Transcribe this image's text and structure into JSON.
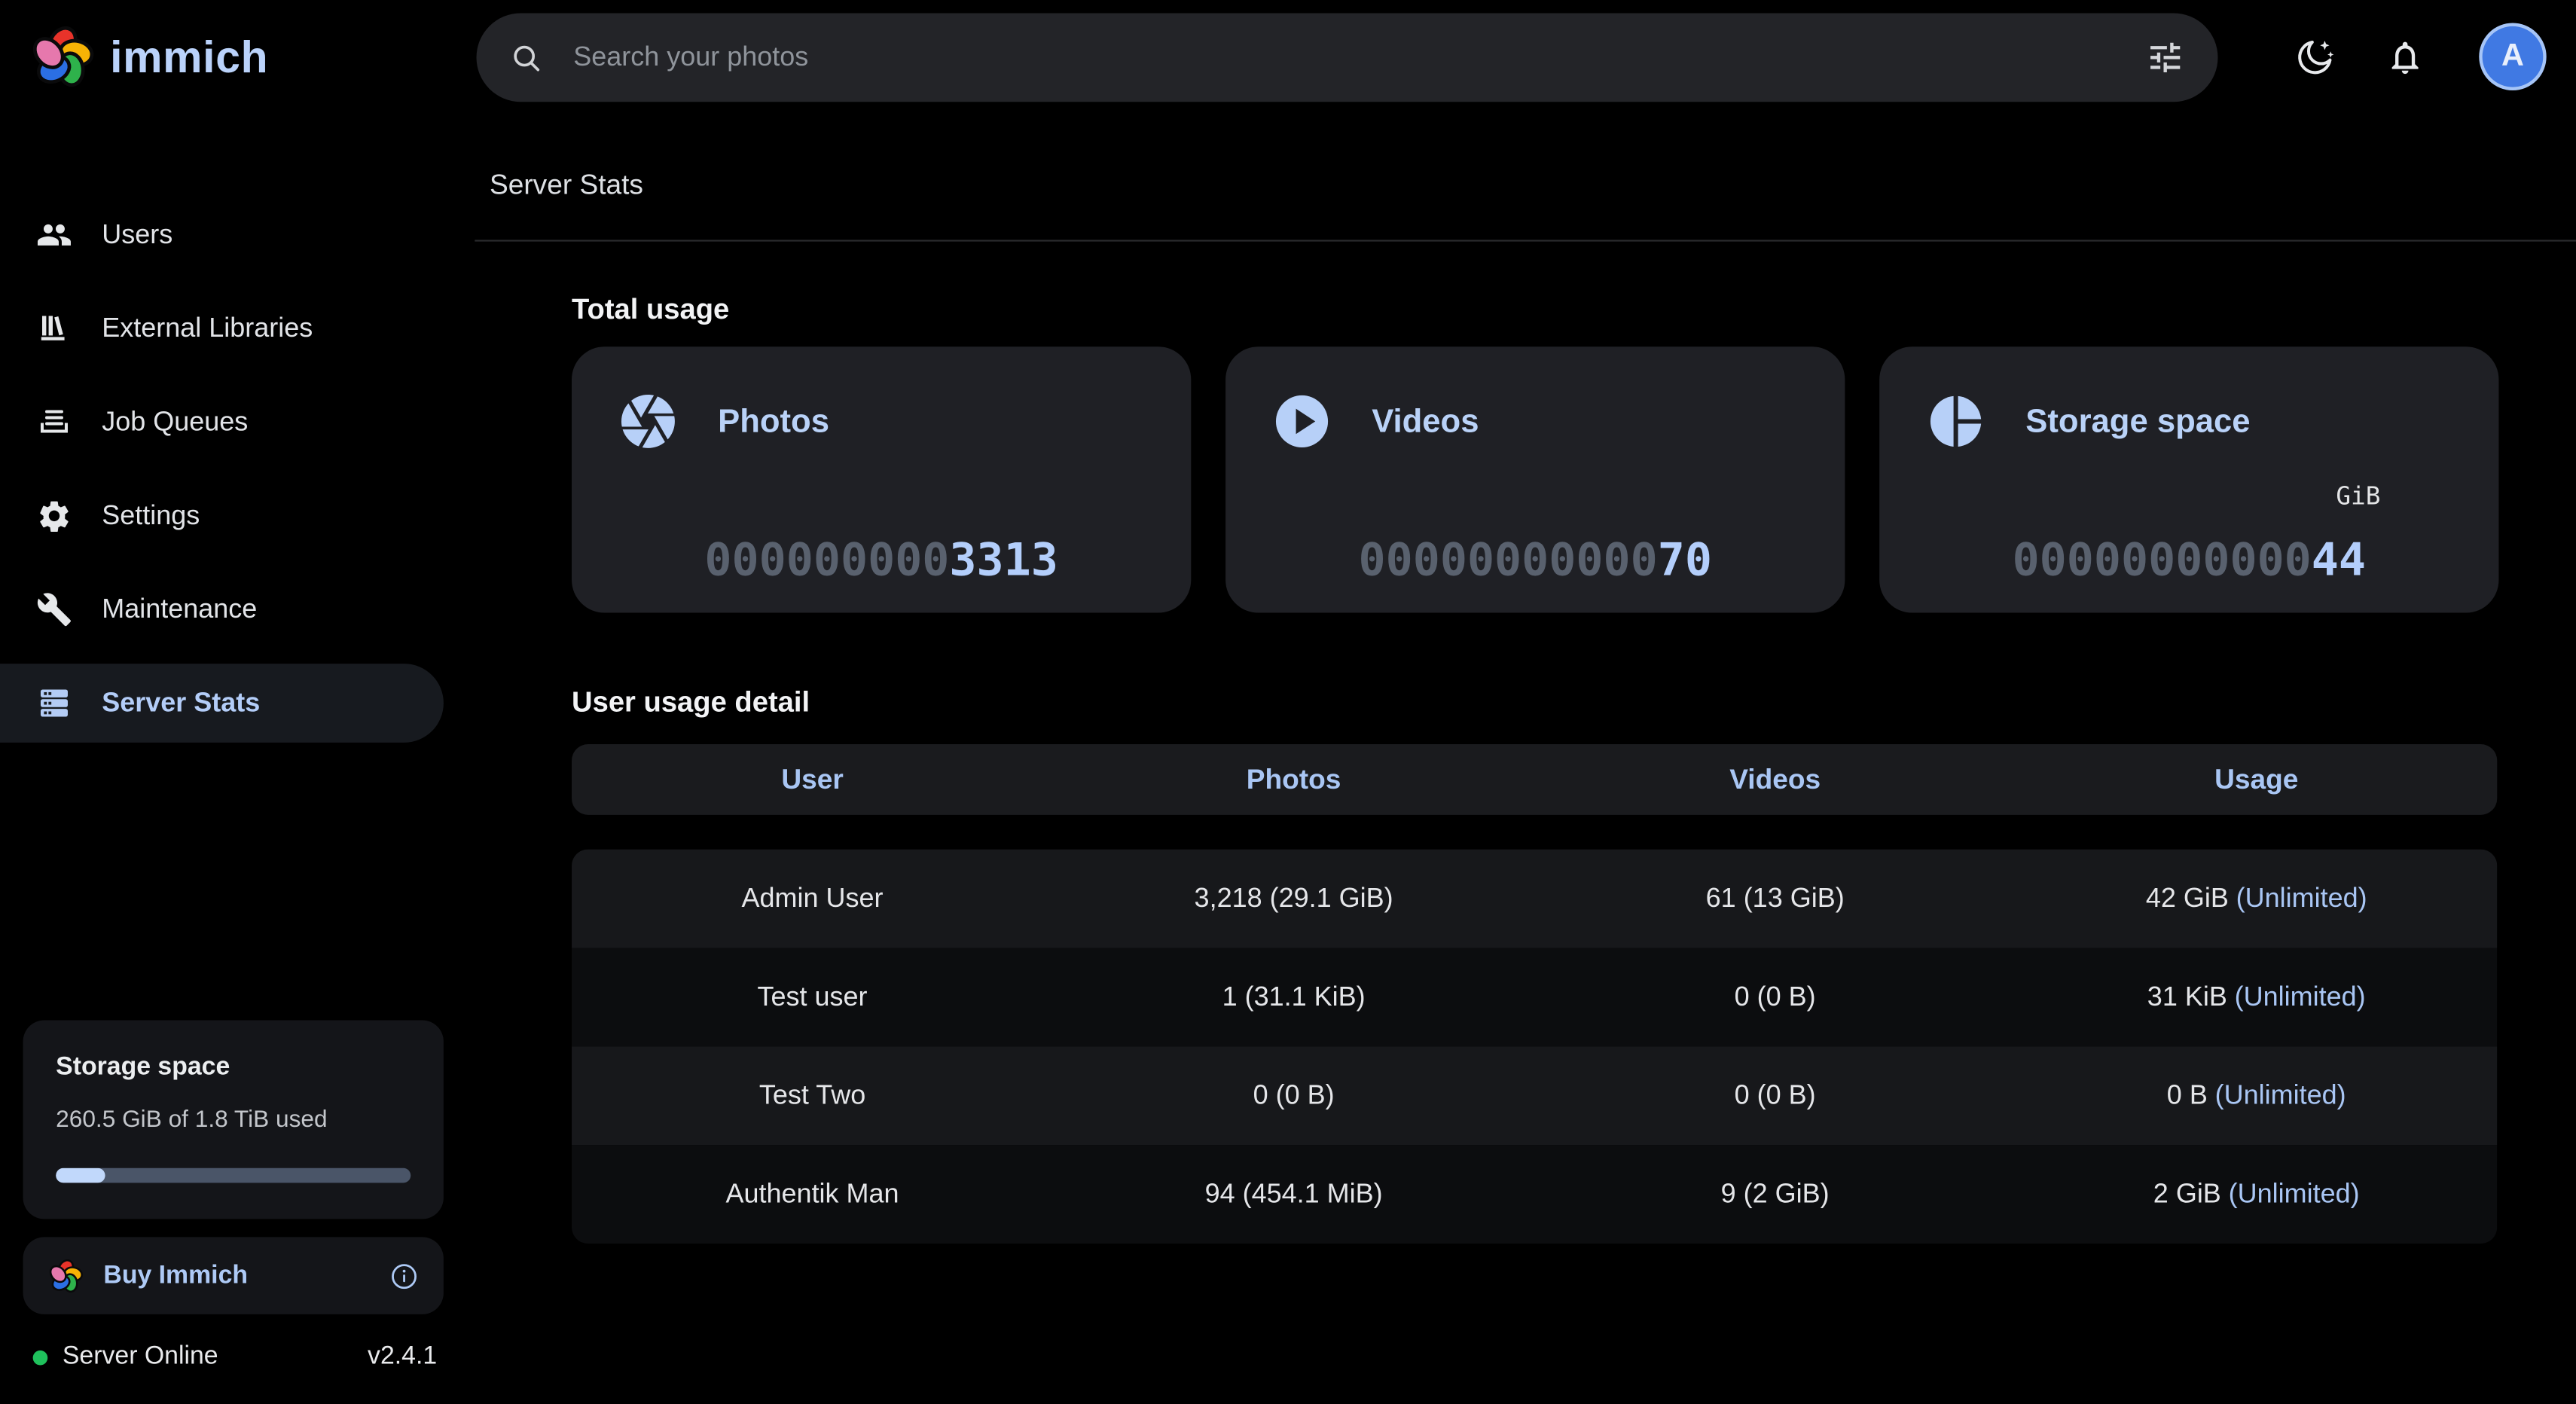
{
  "topbar": {
    "logo_text": "immich",
    "search_placeholder": "Search your photos",
    "search_value": "",
    "avatar_label": "A"
  },
  "sidebar": {
    "items": [
      {
        "label": "Users",
        "icon": "users-icon"
      },
      {
        "label": "External Libraries",
        "icon": "library-icon"
      },
      {
        "label": "Job Queues",
        "icon": "queue-icon"
      },
      {
        "label": "Settings",
        "icon": "gear-icon"
      },
      {
        "label": "Maintenance",
        "icon": "wrench-icon"
      },
      {
        "label": "Server Stats",
        "icon": "server-icon",
        "active": true
      }
    ],
    "storage_panel": {
      "title": "Storage space",
      "subtitle": "260.5 GiB of 1.8 TiB used",
      "progress_percent": 14
    },
    "buy_label": "Buy Immich",
    "server_status": "Server Online",
    "version": "v2.4.1"
  },
  "main": {
    "page_title": "Server Stats",
    "total_usage_heading": "Total usage",
    "user_usage_heading": "User usage detail"
  },
  "cards": [
    {
      "label": "Photos",
      "zeros": "000000000",
      "value": "3313",
      "unit": ""
    },
    {
      "label": "Videos",
      "zeros": "00000000000",
      "value": "70",
      "unit": ""
    },
    {
      "label": "Storage space",
      "zeros": "00000000000",
      "value": "44",
      "unit": "GiB"
    }
  ],
  "table": {
    "headers": [
      "User",
      "Photos",
      "Videos",
      "Usage"
    ],
    "rows": [
      {
        "user": "Admin User",
        "photos": "3,218 (29.1 GiB)",
        "videos": "61 (13 GiB)",
        "usage": "42 GiB",
        "limit": "(Unlimited)"
      },
      {
        "user": "Test user",
        "photos": "1 (31.1 KiB)",
        "videos": "0 (0 B)",
        "usage": "31 KiB",
        "limit": "(Unlimited)"
      },
      {
        "user": "Test Two",
        "photos": "0 (0 B)",
        "videos": "0 (0 B)",
        "usage": "0 B",
        "limit": "(Unlimited)"
      },
      {
        "user": "Authentik Man",
        "photos": "94 (454.1 MiB)",
        "videos": "9 (2 GiB)",
        "usage": "2 GiB",
        "limit": "(Unlimited)"
      }
    ]
  },
  "colors": {
    "accent_blue": "#b3cdf8",
    "card_background": "#1f2025",
    "page_background": "#000000",
    "status_green": "#1fc15c",
    "dim_digits": "#59616e"
  }
}
